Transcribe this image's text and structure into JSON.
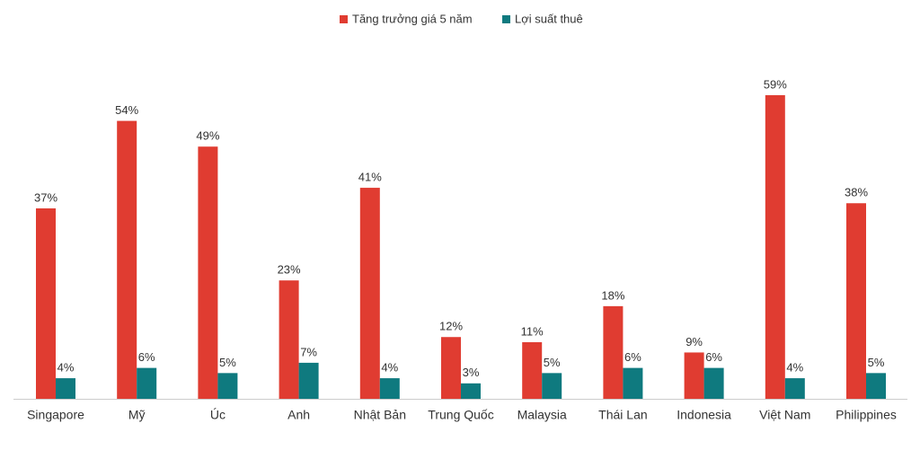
{
  "chart_data": {
    "type": "bar",
    "categories": [
      "Singapore",
      "Mỹ",
      "Úc",
      "Anh",
      "Nhật Bản",
      "Trung Quốc",
      "Malaysia",
      "Thái Lan",
      "Indonesia",
      "Việt Nam",
      "Philippines"
    ],
    "series": [
      {
        "name": "Tăng trưởng giá 5 năm",
        "color": "#e03c31",
        "values": [
          37,
          54,
          49,
          23,
          41,
          12,
          11,
          18,
          9,
          59,
          38
        ],
        "value_labels": [
          "37%",
          "54%",
          "49%",
          "23%",
          "41%",
          "12%",
          "11%",
          "18%",
          "9%",
          "59%",
          "38%"
        ]
      },
      {
        "name": "Lợi suất thuê",
        "color": "#0f7a7f",
        "values": [
          4,
          6,
          5,
          7,
          4,
          3,
          5,
          6,
          6,
          4,
          5
        ],
        "value_labels": [
          "4%",
          "6%",
          "5%",
          "7%",
          "4%",
          "3%",
          "5%",
          "6%",
          "6%",
          "4%",
          "5%"
        ]
      }
    ],
    "legend": "top"
  }
}
